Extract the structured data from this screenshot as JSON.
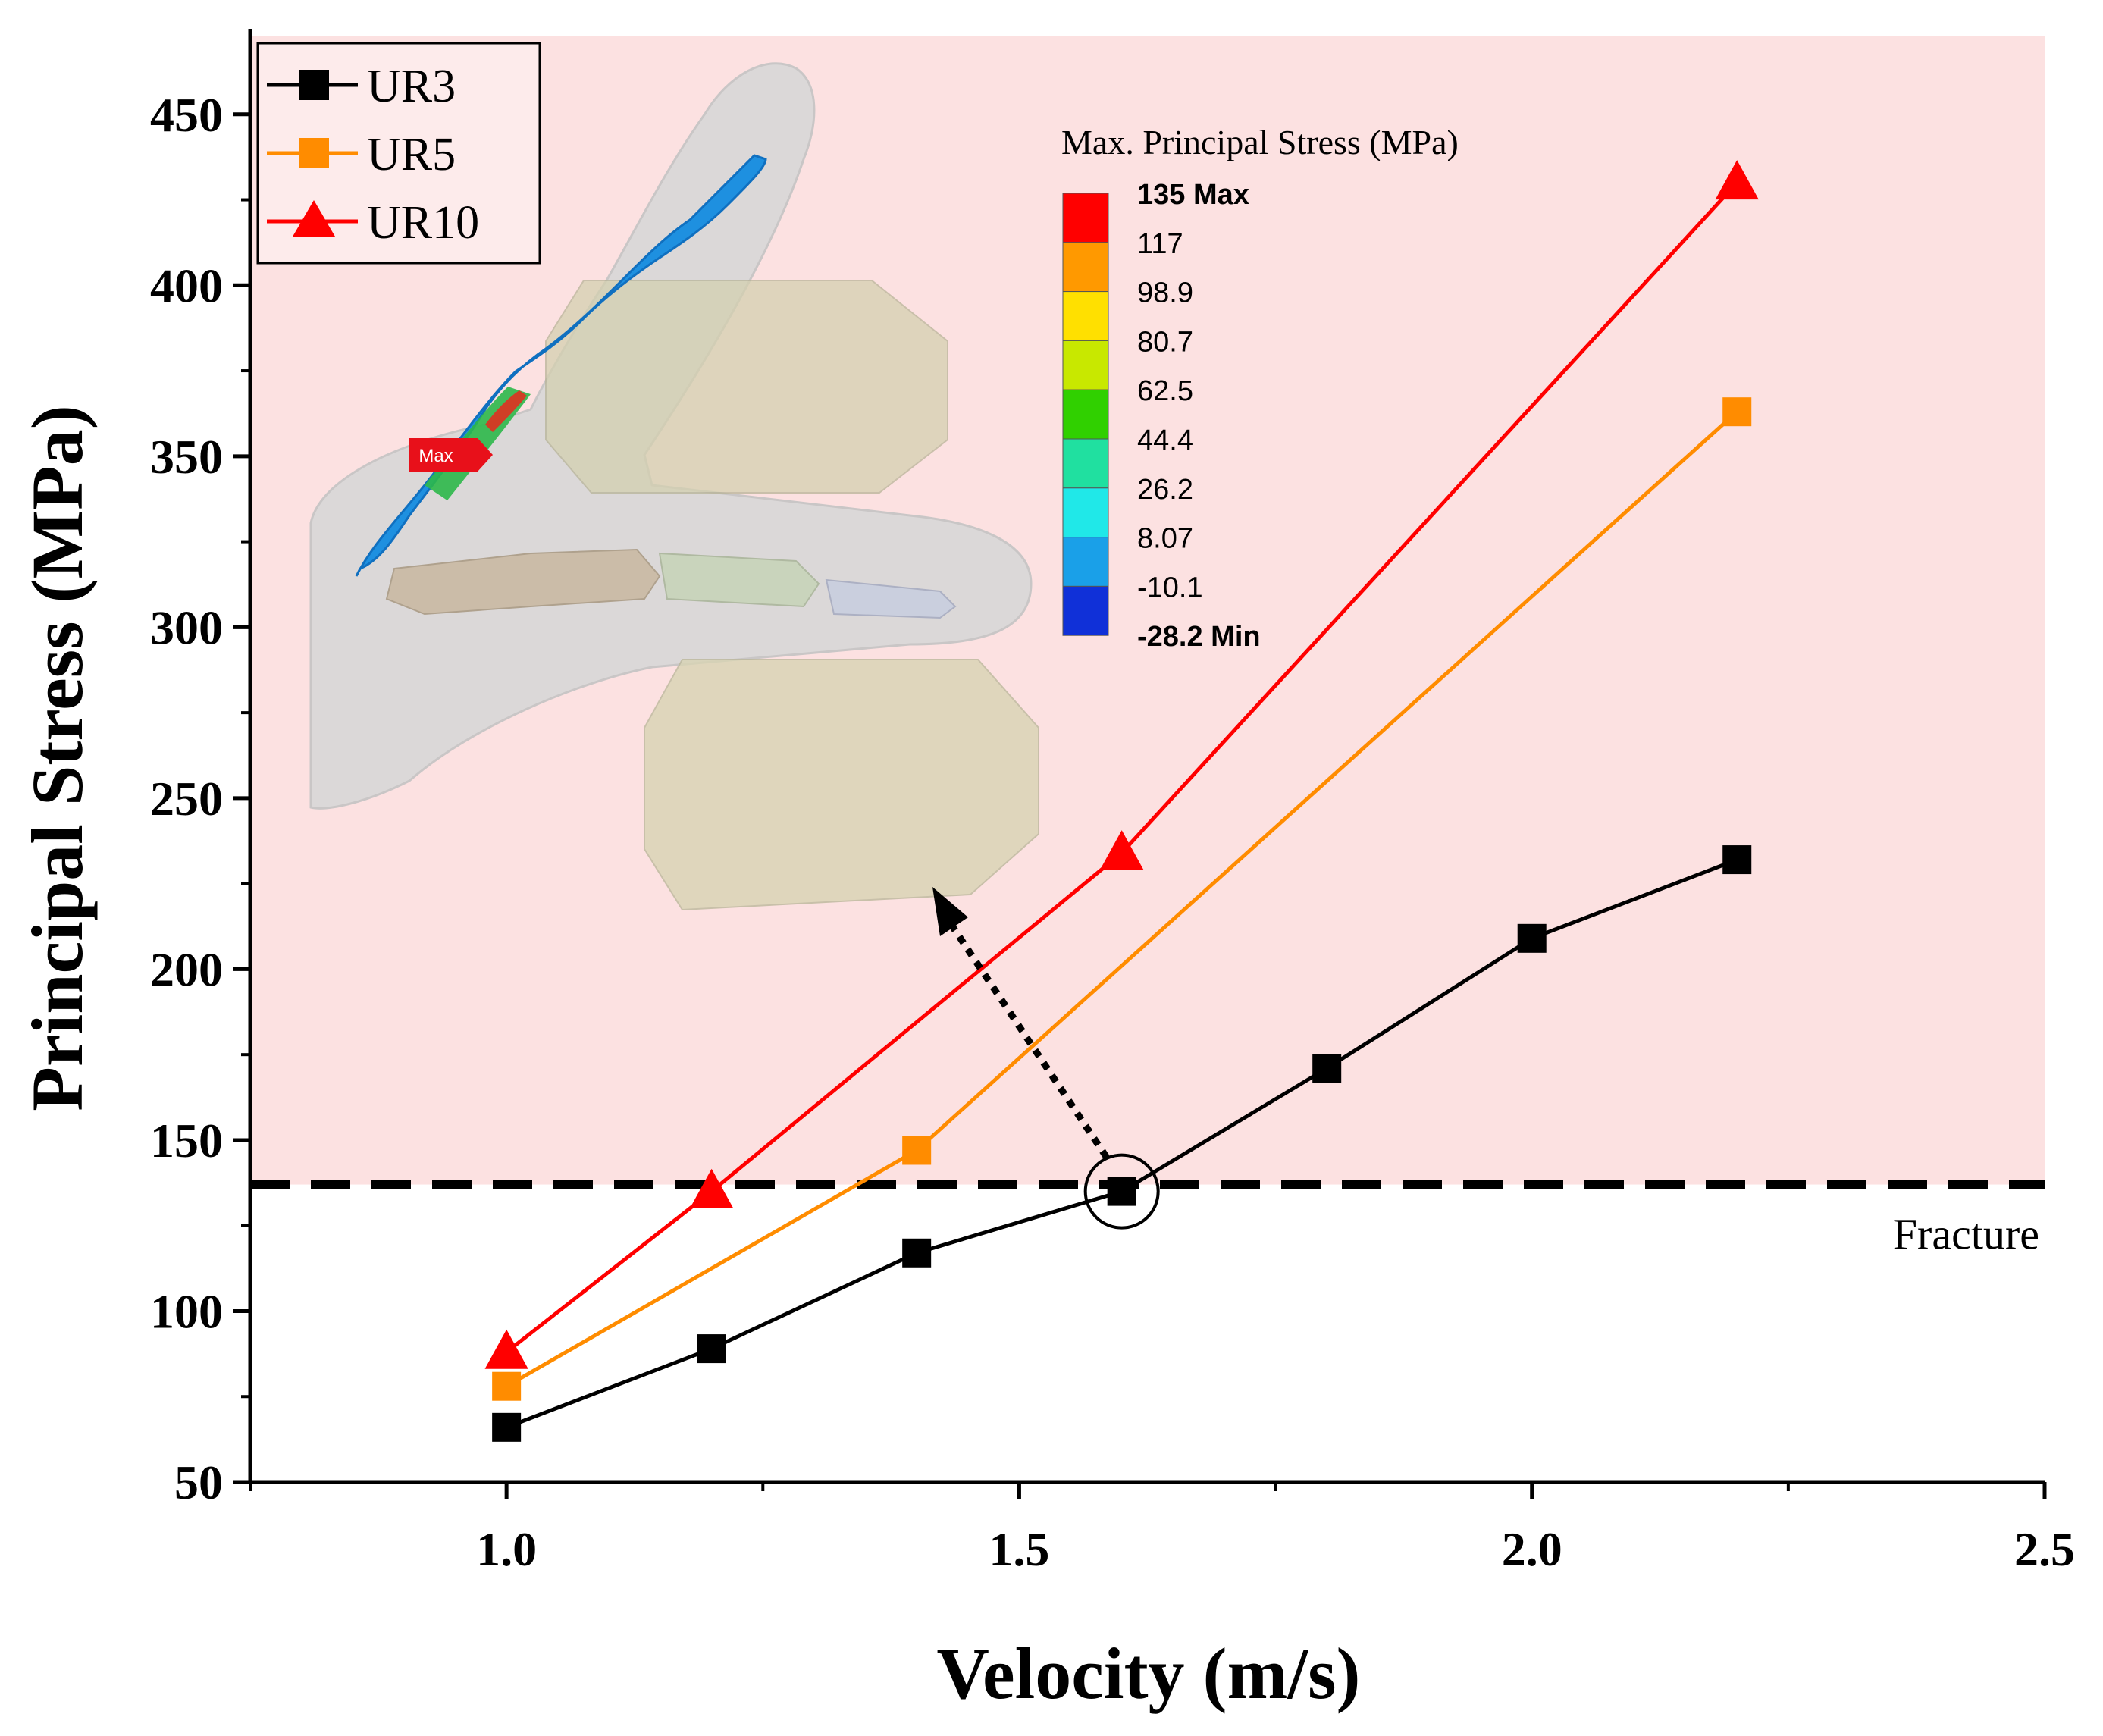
{
  "chart_data": {
    "type": "line",
    "xlabel": "Velocity (m/s)",
    "ylabel": "Principal Stress (MPa)",
    "xlim": [
      0.75,
      2.5
    ],
    "ylim": [
      50,
      475
    ],
    "x_ticks": [
      "1.0",
      "1.5",
      "2.0",
      "2.5"
    ],
    "x_tick_values": [
      1.0,
      1.5,
      2.0,
      2.5
    ],
    "x_minor_ticks": [
      0.75,
      1.25,
      1.75,
      2.25
    ],
    "y_ticks": [
      "50",
      "100",
      "150",
      "200",
      "250",
      "300",
      "350",
      "400",
      "450"
    ],
    "y_tick_values": [
      50,
      100,
      150,
      200,
      250,
      300,
      350,
      400,
      450
    ],
    "y_minor_ticks": [
      75,
      125,
      175,
      225,
      275,
      325,
      375,
      425
    ],
    "fracture_threshold": 137,
    "fracture_label": "Fracture",
    "legend_position": "top-left",
    "series": [
      {
        "name": "UR3",
        "marker": "square",
        "color": "#000000",
        "x": [
          1.0,
          1.2,
          1.4,
          1.6,
          1.8,
          2.0,
          2.2
        ],
        "y": [
          66,
          89,
          117,
          135,
          171,
          209,
          232
        ]
      },
      {
        "name": "UR5",
        "marker": "square",
        "color": "#FF8C00",
        "x": [
          1.0,
          1.4,
          2.2
        ],
        "y": [
          78,
          147,
          363
        ]
      },
      {
        "name": "UR10",
        "marker": "triangle",
        "color": "#FF0000",
        "x": [
          1.0,
          1.2,
          1.6,
          2.2
        ],
        "y": [
          88,
          135,
          234,
          430
        ]
      }
    ],
    "highlight_point": {
      "series": "UR3",
      "x": 1.6,
      "y": 135
    }
  },
  "colorbar": {
    "title": "Max. Principal Stress (MPa)",
    "labels": [
      "135 Max",
      "117",
      "98.9",
      "80.7",
      "62.5",
      "44.4",
      "26.2",
      "8.07",
      "-10.1",
      "-28.2 Min"
    ],
    "colors": [
      "#FF0000",
      "#FF9900",
      "#FFE000",
      "#C8E800",
      "#30D000",
      "#20E0A0",
      "#20E8E8",
      "#1AA0E8",
      "#1030D8"
    ]
  },
  "inset": {
    "max_tag": "Max"
  },
  "colors": {
    "shade": "#FCE1E1",
    "ur3": "#000000",
    "ur5": "#FF8C00",
    "ur10": "#FF0000"
  }
}
